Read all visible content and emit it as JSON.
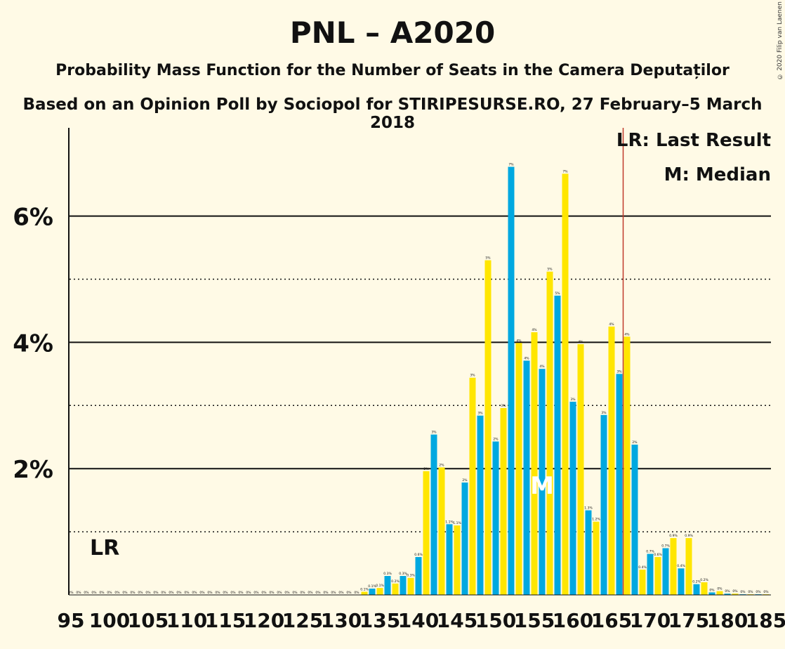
{
  "header": {
    "title": "PNL – A2020",
    "subtitle": "Probability Mass Function for the Number of Seats in the Camera Deputaților",
    "source": "Based on an Opinion Poll by Sociopol for STIRIPESURSE.RO, 27 February–5 March 2018",
    "copyright": "© 2020 Filip van Laenen"
  },
  "legend": {
    "lr": "LR: Last Result",
    "median": "M: Median"
  },
  "colors": {
    "background": "#fffae6",
    "bar_blue": "#00a8e0",
    "bar_yellow": "#ffe600",
    "last_result_line": "#c0392b"
  },
  "chart_data": {
    "type": "bar",
    "x": [
      95,
      96,
      97,
      98,
      99,
      100,
      101,
      102,
      103,
      104,
      105,
      106,
      107,
      108,
      109,
      110,
      111,
      112,
      113,
      114,
      115,
      116,
      117,
      118,
      119,
      120,
      121,
      122,
      123,
      124,
      125,
      126,
      127,
      128,
      129,
      130,
      131,
      132,
      133,
      134,
      135,
      136,
      137,
      138,
      139,
      140,
      141,
      142,
      143,
      144,
      145,
      146,
      147,
      148,
      149,
      150,
      151,
      152,
      153,
      154,
      155,
      156,
      157,
      158,
      159,
      160,
      161,
      162,
      163,
      164,
      165,
      166,
      167,
      168,
      169,
      170,
      171,
      172,
      173,
      174,
      175,
      176,
      177,
      178,
      179,
      180,
      181,
      182,
      183,
      184,
      185
    ],
    "values": [
      0,
      0,
      0,
      0,
      0,
      0,
      0,
      0,
      0,
      0,
      0,
      0,
      0,
      0,
      0,
      0,
      0,
      0,
      0,
      0,
      0,
      0,
      0,
      0,
      0,
      0,
      0,
      0,
      0,
      0,
      0,
      0,
      0,
      0,
      0,
      0,
      0,
      0,
      0.05,
      0.1,
      0.11,
      0.3,
      0.18,
      0.3,
      0.27,
      0.6,
      1.96,
      2.54,
      2.02,
      1.12,
      1.1,
      1.78,
      3.44,
      2.84,
      5.3,
      2.43,
      2.96,
      6.78,
      3.99,
      3.71,
      4.16,
      3.58,
      5.12,
      4.74,
      6.67,
      3.06,
      3.97,
      1.34,
      1.16,
      2.85,
      4.25,
      3.5,
      4.09,
      2.38,
      0.4,
      0.65,
      0.6,
      0.74,
      0.9,
      0.42,
      0.9,
      0.17,
      0.2,
      0.04,
      0.06,
      0.02,
      0.02,
      0.01,
      0.01,
      0.01,
      0.01
    ],
    "labels": [
      "0%",
      "0%",
      "0%",
      "0%",
      "0%",
      "0%",
      "0%",
      "0%",
      "0%",
      "0%",
      "0%",
      "0%",
      "0%",
      "0%",
      "0%",
      "0%",
      "0%",
      "0%",
      "0%",
      "0%",
      "0%",
      "0%",
      "0%",
      "0%",
      "0%",
      "0%",
      "0%",
      "0%",
      "0%",
      "0%",
      "0%",
      "0%",
      "0%",
      "0%",
      "0%",
      "0%",
      "0%",
      "0%",
      "0.1%",
      "0.1%",
      "0.1%",
      "0.3%",
      "0.2%",
      "0.3%",
      "0.3%",
      "0.6%",
      "2%",
      "3%",
      "2%",
      "1.1%",
      "1.1%",
      "2%",
      "3%",
      "3%",
      "5%",
      "2%",
      "3%",
      "7%",
      "4%",
      "4%",
      "4%",
      "4%",
      "5%",
      "5%",
      "7%",
      "3%",
      "4%",
      "1.3%",
      "1.2%",
      "3%",
      "4%",
      "3%",
      "4%",
      "2%",
      "0.4%",
      "0.7%",
      "0.6%",
      "0.7%",
      "0.9%",
      "0.4%",
      "0.9%",
      "0.2%",
      "0.2%",
      "0%",
      "0%",
      "0%",
      "0%",
      "0%",
      "0%",
      "0%",
      "0%"
    ],
    "xticks": [
      95,
      100,
      105,
      110,
      115,
      120,
      125,
      130,
      135,
      140,
      145,
      150,
      155,
      160,
      165,
      170,
      175,
      180,
      185
    ],
    "yticks": [
      2,
      4,
      6
    ],
    "ytick_labels": [
      "2%",
      "4%",
      "6%"
    ],
    "ylim": [
      0,
      7.35
    ],
    "last_result": 98,
    "last_result_label": "LR",
    "median": 156,
    "median_label": "M",
    "majority_line": 166,
    "grid": "dotted at odd percents, solid at even percents"
  }
}
